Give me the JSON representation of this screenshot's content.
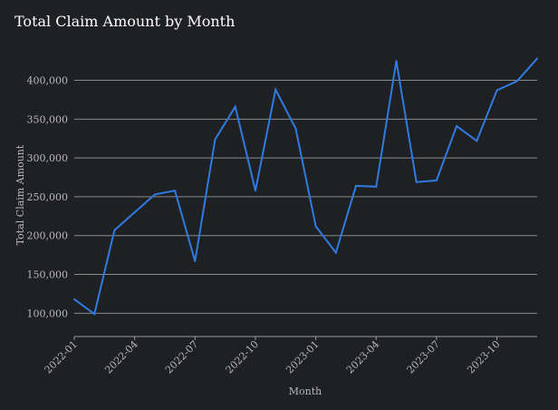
{
  "chart_data": {
    "type": "line",
    "title": "Total Claim Amount by Month",
    "xlabel": "Month",
    "ylabel": "Total Claim Amount",
    "x": [
      "2022-01",
      "2022-02",
      "2022-03",
      "2022-04",
      "2022-05",
      "2022-06",
      "2022-07",
      "2022-08",
      "2022-09",
      "2022-10",
      "2022-11",
      "2022-12",
      "2023-01",
      "2023-02",
      "2023-03",
      "2023-04",
      "2023-05",
      "2023-06",
      "2023-07",
      "2023-08",
      "2023-09",
      "2023-10",
      "2023-11",
      "2023-12"
    ],
    "series": [
      {
        "values": [
          118000,
          99000,
          207000,
          230000,
          253000,
          258000,
          167000,
          324000,
          366000,
          258000,
          388000,
          338000,
          212000,
          178000,
          264000,
          263000,
          425000,
          269000,
          271000,
          341000,
          322000,
          387000,
          399000,
          428000
        ],
        "color": "#2f7be0"
      }
    ],
    "x_ticks": [
      "2022-01",
      "2022-04",
      "2022-07",
      "2022-10",
      "2023-01",
      "2023-04",
      "2023-07",
      "2023-10"
    ],
    "y_ticks": [
      100000,
      150000,
      200000,
      250000,
      300000,
      350000,
      400000
    ],
    "y_tick_labels": [
      "100,000",
      "150,000",
      "200,000",
      "250,000",
      "300,000",
      "350,000",
      "400,000"
    ],
    "ylim": [
      70000,
      445000
    ],
    "grid": "horizontal",
    "legend": "none"
  }
}
